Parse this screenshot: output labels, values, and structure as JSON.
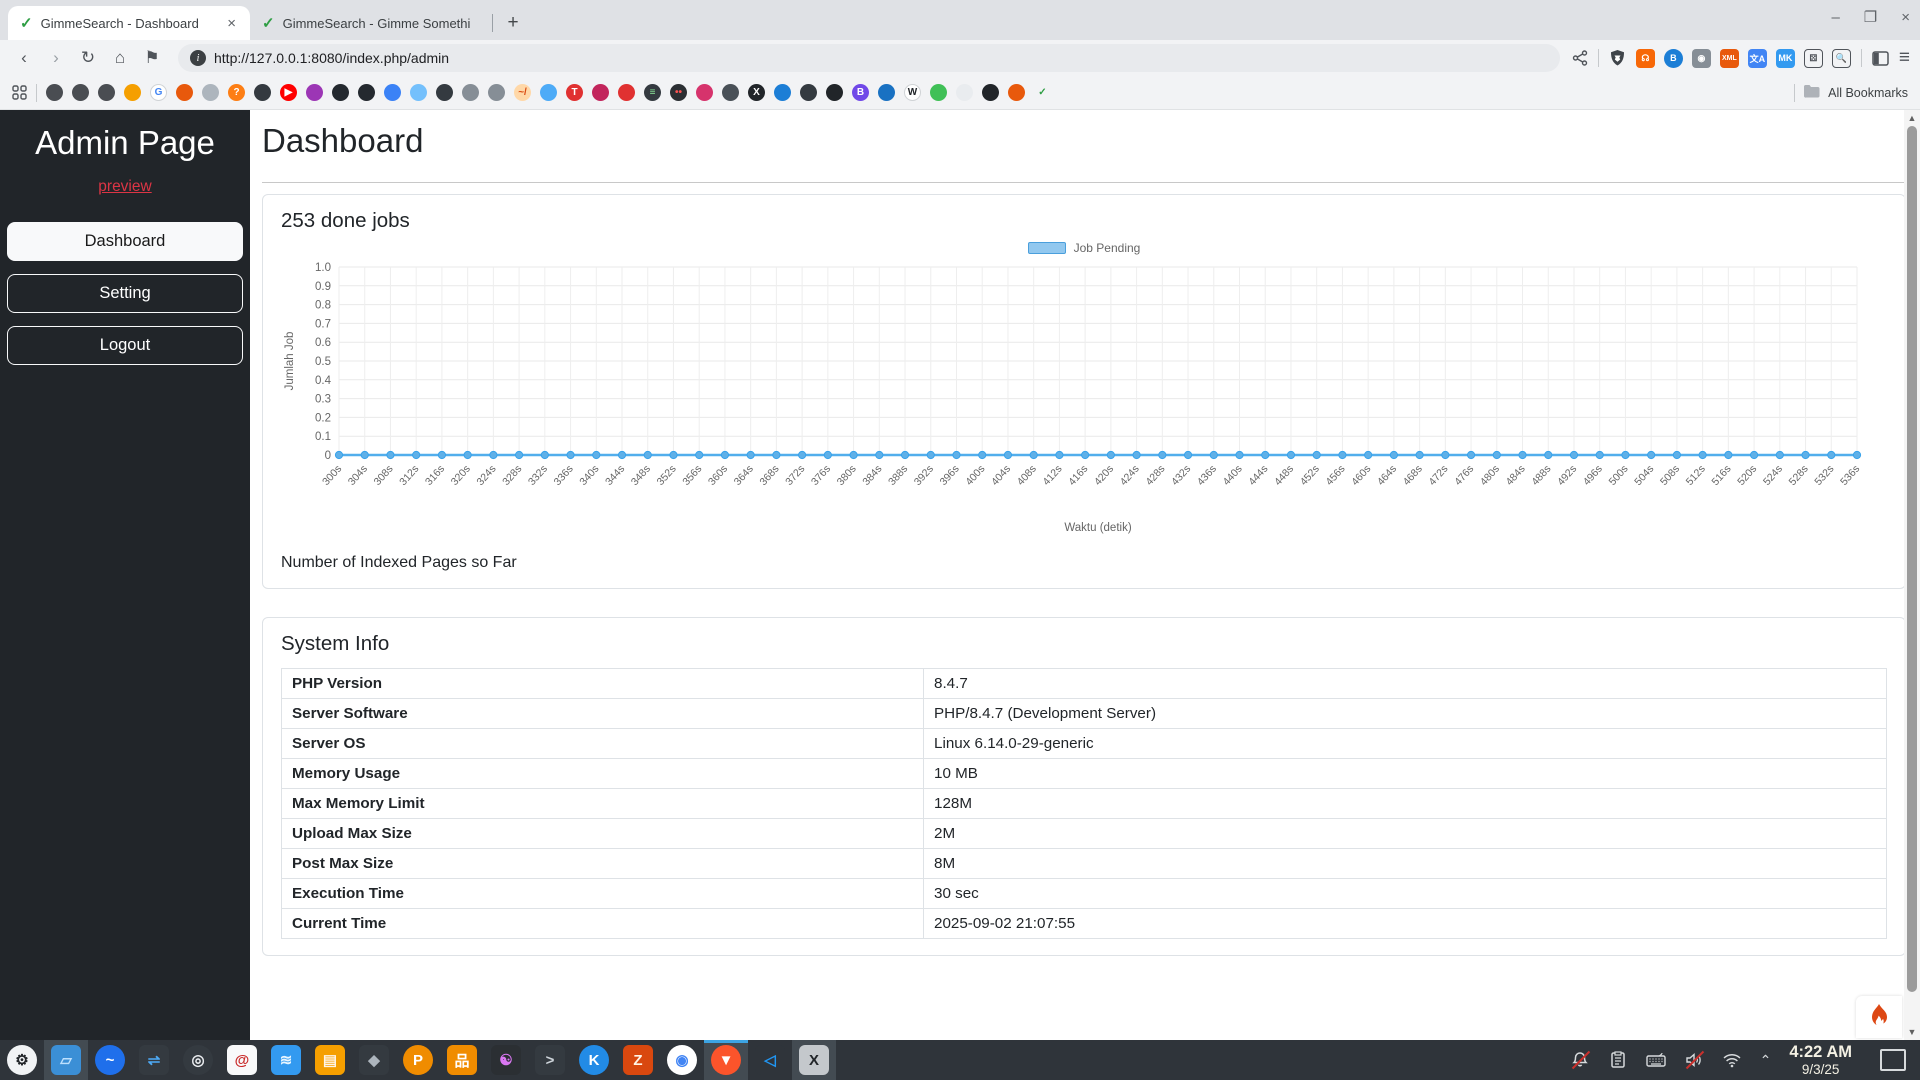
{
  "colors": {
    "accent_blue": "#36a2eb",
    "sidebar_bg": "#212529",
    "preview_red": "#dc3545",
    "taskbar_bg": "#2f343a",
    "card_border": "#dee2e6",
    "flame_orange": "#dd4814"
  },
  "browser": {
    "tabs": [
      {
        "title": "GimmeSearch - Dashboard",
        "active": true
      },
      {
        "title": "GimmeSearch - Gimme Somethi",
        "active": false
      }
    ],
    "new_tab_label": "+",
    "window_controls": {
      "minimize": "–",
      "restore": "❐",
      "close": "×"
    },
    "url": "http://127.0.0.1:8080/index.php/admin",
    "all_bookmarks_label": "All Bookmarks",
    "extensions": [
      {
        "name": "rss-icon",
        "color": "#f76707",
        "glyph": "☊"
      },
      {
        "name": "b-circle-icon",
        "color": "#1c7ed6",
        "glyph": "B",
        "circle": true
      },
      {
        "name": "camera-icon",
        "color": "#868e96",
        "glyph": "◉"
      },
      {
        "name": "xml-icon",
        "color": "#e8590c",
        "glyph": "XML"
      },
      {
        "name": "translate-icon",
        "color": "#4285f4",
        "glyph": "文A"
      },
      {
        "name": "mk-icon",
        "color": "#339af0",
        "glyph": "MK"
      },
      {
        "name": "puzzle-icon",
        "color": "transparent",
        "glyph": "⚄",
        "outline": true
      },
      {
        "name": "search-box-icon",
        "color": "transparent",
        "glyph": "🔍",
        "outline": true
      }
    ],
    "favicons": [
      {
        "name": "globe-1",
        "color": "#4a4d52"
      },
      {
        "name": "globe-2",
        "color": "#4a4d52"
      },
      {
        "name": "globe-3",
        "color": "#4a4d52"
      },
      {
        "name": "flame-site",
        "color": "#f59f00"
      },
      {
        "name": "google",
        "color": "#ffffff",
        "glyph": "G",
        "fg": "#4285f4"
      },
      {
        "name": "red-site",
        "color": "#e8590c"
      },
      {
        "name": "doc-site",
        "color": "#adb5bd"
      },
      {
        "name": "orange-q",
        "color": "#fd7e14",
        "glyph": "?",
        "fg": "#ffffff"
      },
      {
        "name": "dark-cam",
        "color": "#343a40"
      },
      {
        "name": "youtube",
        "color": "#ff0000",
        "glyph": "▶",
        "fg": "#ffffff"
      },
      {
        "name": "purple-site",
        "color": "#9c36b5"
      },
      {
        "name": "github-1",
        "color": "#24292f"
      },
      {
        "name": "github-2",
        "color": "#24292f"
      },
      {
        "name": "blue-arc",
        "color": "#3b82f6"
      },
      {
        "name": "blue-spark",
        "color": "#74c0fc"
      },
      {
        "name": "dark-badge",
        "color": "#343a40"
      },
      {
        "name": "knot-1",
        "color": "#868e96"
      },
      {
        "name": "knot-2",
        "color": "#868e96"
      },
      {
        "name": "term-frame",
        "color": "#ffd8a8",
        "glyph": "~/",
        "fg": "#d9480f"
      },
      {
        "name": "blue-ladder",
        "color": "#4dabf7"
      },
      {
        "name": "red-t",
        "color": "#e03131",
        "glyph": "T",
        "fg": "#ffffff"
      },
      {
        "name": "raspberry",
        "color": "#c2255c"
      },
      {
        "name": "red-shield",
        "color": "#e03131"
      },
      {
        "name": "dark-list",
        "color": "#343a40",
        "glyph": "≡",
        "fg": "#8ce99a"
      },
      {
        "name": "dark-dots",
        "color": "#2b2f33",
        "glyph": "••",
        "fg": "#fa5252"
      },
      {
        "name": "firefox-pink",
        "color": "#d6336c"
      },
      {
        "name": "dots-plus",
        "color": "#495057"
      },
      {
        "name": "ex-black",
        "color": "#212529",
        "glyph": "X",
        "fg": "#ffffff"
      },
      {
        "name": "blue-swirl",
        "color": "#1c7ed6"
      },
      {
        "name": "penguin",
        "color": "#343a40"
      },
      {
        "name": "dark-square",
        "color": "#212529"
      },
      {
        "name": "purple-b",
        "color": "#7048e8",
        "glyph": "B",
        "fg": "#ffffff"
      },
      {
        "name": "chart-site",
        "color": "#1971c2"
      },
      {
        "name": "wiki-w",
        "color": "#ffffff",
        "glyph": "W",
        "fg": "#212529"
      },
      {
        "name": "green-site",
        "color": "#40c057"
      },
      {
        "name": "light-kb",
        "color": "#e9ecef"
      },
      {
        "name": "dark-oval",
        "color": "#212529"
      },
      {
        "name": "flame-2",
        "color": "#e8590c"
      },
      {
        "name": "gimme-check",
        "color": "transparent",
        "glyph": "✓",
        "fg": "#2f9e44"
      }
    ]
  },
  "sidebar": {
    "title": "Admin Page",
    "preview_link": "preview",
    "items": [
      {
        "label": "Dashboard",
        "active": true
      },
      {
        "label": "Setting",
        "active": false
      },
      {
        "label": "Logout",
        "active": false
      }
    ]
  },
  "main": {
    "page_title": "Dashboard",
    "chart_card": {
      "title": "253 done jobs",
      "footer": "Number of Indexed Pages so Far"
    },
    "system_info": {
      "title": "System Info",
      "rows": [
        {
          "label": "PHP Version",
          "value": "8.4.7"
        },
        {
          "label": "Server Software",
          "value": "PHP/8.4.7 (Development Server)"
        },
        {
          "label": "Server OS",
          "value": "Linux 6.14.0-29-generic"
        },
        {
          "label": "Memory Usage",
          "value": "10 MB"
        },
        {
          "label": "Max Memory Limit",
          "value": "128M"
        },
        {
          "label": "Upload Max Size",
          "value": "2M"
        },
        {
          "label": "Post Max Size",
          "value": "8M"
        },
        {
          "label": "Execution Time",
          "value": "30 sec"
        },
        {
          "label": "Current Time",
          "value": "2025-09-02 21:07:55"
        }
      ]
    }
  },
  "chart_data": {
    "type": "line",
    "title": "",
    "xlabel": "Waktu (detik)",
    "ylabel": "Jumlah Job",
    "ylim": [
      0,
      1.0
    ],
    "y_ticks": [
      "1.0",
      "0.9",
      "0.8",
      "0.7",
      "0.6",
      "0.5",
      "0.4",
      "0.3",
      "0.2",
      "0.1",
      "0"
    ],
    "grid": true,
    "legend_position": "top",
    "x": [
      "300s",
      "304s",
      "308s",
      "312s",
      "316s",
      "320s",
      "324s",
      "328s",
      "332s",
      "336s",
      "340s",
      "344s",
      "348s",
      "352s",
      "356s",
      "360s",
      "364s",
      "368s",
      "372s",
      "376s",
      "380s",
      "384s",
      "388s",
      "392s",
      "396s",
      "400s",
      "404s",
      "408s",
      "412s",
      "416s",
      "420s",
      "424s",
      "428s",
      "432s",
      "436s",
      "440s",
      "444s",
      "448s",
      "452s",
      "456s",
      "460s",
      "464s",
      "468s",
      "472s",
      "476s",
      "480s",
      "484s",
      "488s",
      "492s",
      "496s",
      "500s",
      "504s",
      "508s",
      "512s",
      "516s",
      "520s",
      "524s",
      "528s",
      "532s",
      "536s"
    ],
    "series": [
      {
        "name": "Job Pending",
        "color": "#36a2eb",
        "fill_color": "#92c8ef",
        "values": [
          0,
          0,
          0,
          0,
          0,
          0,
          0,
          0,
          0,
          0,
          0,
          0,
          0,
          0,
          0,
          0,
          0,
          0,
          0,
          0,
          0,
          0,
          0,
          0,
          0,
          0,
          0,
          0,
          0,
          0,
          0,
          0,
          0,
          0,
          0,
          0,
          0,
          0,
          0,
          0,
          0,
          0,
          0,
          0,
          0,
          0,
          0,
          0,
          0,
          0,
          0,
          0,
          0,
          0,
          0,
          0,
          0,
          0,
          0,
          0
        ]
      }
    ]
  },
  "taskbar": {
    "apps": [
      {
        "name": "app-system-settings",
        "bg": "#f1f3f5",
        "fg": "#212529",
        "glyph": "⚙",
        "shape": "circle"
      },
      {
        "name": "app-file-manager",
        "bg": "#3b8fd6",
        "fg": "#bde0fe",
        "glyph": "▱",
        "active": true
      },
      {
        "name": "app-thunderbird",
        "bg": "#1f6feb",
        "fg": "#ffffff",
        "glyph": "~",
        "shape": "circle"
      },
      {
        "name": "app-settings-sliders",
        "bg": "#343a40",
        "fg": "#4dabf7",
        "glyph": "⇌"
      },
      {
        "name": "app-keychain",
        "bg": "#343a40",
        "fg": "#e9ecef",
        "glyph": "◎",
        "shape": "circle"
      },
      {
        "name": "app-spiral",
        "bg": "#f8f9fa",
        "fg": "#c92a2a",
        "glyph": "@"
      },
      {
        "name": "app-database",
        "bg": "#339af0",
        "fg": "#e7f5ff",
        "glyph": "≋"
      },
      {
        "name": "app-impress",
        "bg": "#f59f00",
        "fg": "#fff4e6",
        "glyph": "▤"
      },
      {
        "name": "app-dark-kite",
        "bg": "#343a40",
        "fg": "#adb5bd",
        "glyph": "◆"
      },
      {
        "name": "app-portproton",
        "bg": "#f08c00",
        "fg": "#ffffff",
        "glyph": "P",
        "shape": "circle"
      },
      {
        "name": "app-diagram",
        "bg": "#f08c00",
        "fg": "#ffffff",
        "glyph": "品"
      },
      {
        "name": "app-krita",
        "bg": "#2b2f33",
        "fg": "#da77f2",
        "glyph": "☯"
      },
      {
        "name": "app-terminal",
        "bg": "#343a40",
        "fg": "#ced4da",
        "glyph": ">"
      },
      {
        "name": "app-k-blue",
        "bg": "#228be6",
        "fg": "#ffffff",
        "glyph": "K",
        "shape": "circle"
      },
      {
        "name": "app-zim",
        "bg": "#d9480f",
        "fg": "#fff4e6",
        "glyph": "Z"
      },
      {
        "name": "app-chrome",
        "bg": "#ffffff",
        "fg": "#4285f4",
        "glyph": "◉",
        "shape": "circle"
      },
      {
        "name": "app-brave",
        "bg": "#fb542b",
        "fg": "#ffffff",
        "glyph": "▼",
        "shape": "circle",
        "active": true,
        "line": true
      },
      {
        "name": "app-vscode",
        "bg": "#2f343a",
        "fg": "#2196f3",
        "glyph": "◁"
      },
      {
        "name": "app-xterm",
        "bg": "#c4c8cc",
        "fg": "#212529",
        "glyph": "X",
        "active": true
      }
    ],
    "clock_time": "4:22 AM",
    "clock_date": "9/3/25"
  }
}
